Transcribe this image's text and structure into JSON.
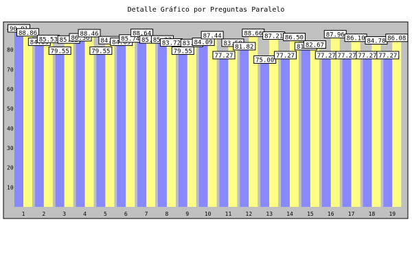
{
  "chart_data": {
    "type": "bar",
    "title": "Detalle Gráfico por Preguntas Paralelo",
    "xlabel": "",
    "ylabel": "",
    "ylim": [
      0,
      90
    ],
    "yticks": [
      10,
      20,
      30,
      40,
      50,
      60,
      70,
      80,
      90
    ],
    "grid": false,
    "categories": [
      "1",
      "2",
      "3",
      "4",
      "5",
      "6",
      "7",
      "8",
      "9",
      "10",
      "11",
      "12",
      "13",
      "14",
      "15",
      "16",
      "17",
      "18",
      "19"
    ],
    "series": [
      {
        "color": "#8888ff",
        "values": [
          90.91,
          84.09,
          79.55,
          86.36,
          79.55,
          84.09,
          88.64,
          85.27,
          79.55,
          84.09,
          77.27,
          81.82,
          75.0,
          77.27,
          81.82,
          77.27,
          77.27,
          77.27,
          77.27
        ]
      },
      {
        "color": "#ffff88",
        "values": [
          88.86,
          85.53,
          85.22,
          88.46,
          84.89,
          85.74,
          85.27,
          83.72,
          83.46,
          87.44,
          83.58,
          88.66,
          87.21,
          86.5,
          82.67,
          87.96,
          86.1,
          84.78,
          86.08
        ]
      }
    ],
    "colors": {
      "plot_background": "#c0c0c0",
      "category_label_alt": "#ffffff"
    }
  }
}
